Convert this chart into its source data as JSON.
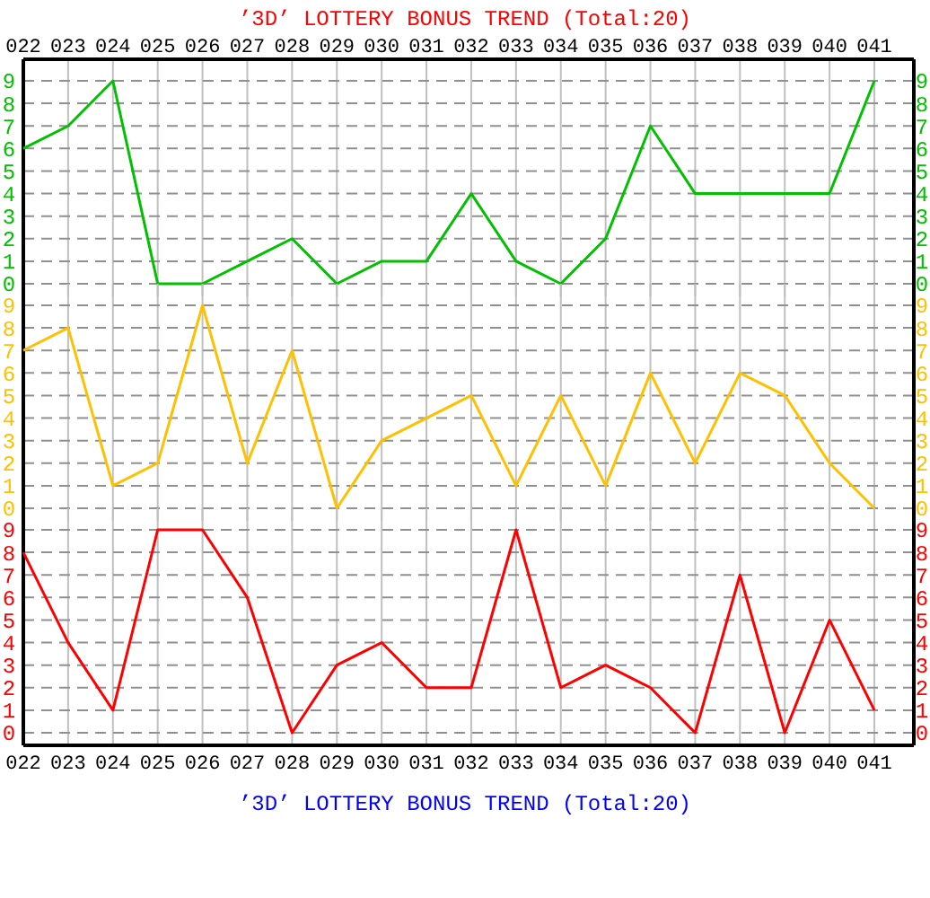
{
  "chart_data": [
    {
      "type": "line",
      "title": "’3D’ LOTTERY BONUS TREND (Total:20)",
      "categories": [
        "022",
        "023",
        "024",
        "025",
        "026",
        "027",
        "028",
        "029",
        "030",
        "031",
        "032",
        "033",
        "034",
        "035",
        "036",
        "037",
        "038",
        "039",
        "040",
        "041"
      ],
      "series": [
        {
          "color": "#00c000",
          "values": [
            6,
            7,
            9,
            0,
            0,
            1,
            2,
            0,
            1,
            1,
            4,
            1,
            0,
            2,
            7,
            4,
            4,
            4,
            4,
            9
          ]
        }
      ],
      "ylim": [
        0,
        9
      ],
      "yticks": [
        0,
        1,
        2,
        3,
        4,
        5,
        6,
        7,
        8,
        9
      ],
      "y2lim": [
        0,
        9
      ],
      "y2ticks": [
        0,
        1,
        2,
        3,
        4,
        5,
        6,
        7,
        8,
        9
      ],
      "grid": true,
      "line_style": "solid"
    },
    {
      "type": "line",
      "categories": [
        "022",
        "023",
        "024",
        "025",
        "026",
        "027",
        "028",
        "029",
        "030",
        "031",
        "032",
        "033",
        "034",
        "035",
        "036",
        "037",
        "038",
        "039",
        "040",
        "041"
      ],
      "series": [
        {
          "color": "#ffc000",
          "values": [
            7,
            8,
            1,
            2,
            9,
            2,
            7,
            0,
            3,
            4,
            5,
            1,
            5,
            1,
            6,
            2,
            6,
            5,
            2,
            0
          ]
        }
      ],
      "ylim": [
        0,
        9
      ],
      "yticks": [
        0,
        1,
        2,
        3,
        4,
        5,
        6,
        7,
        8,
        9
      ],
      "y2lim": [
        0,
        9
      ],
      "y2ticks": [
        0,
        1,
        2,
        3,
        4,
        5,
        6,
        7,
        8,
        9
      ],
      "grid": true,
      "line_style": "solid",
      "tick_labels": "y"
    },
    {
      "type": "line",
      "categories": [
        "022",
        "023",
        "024",
        "025",
        "026",
        "027",
        "028",
        "029",
        "030",
        "031",
        "032",
        "033",
        "034",
        "035",
        "036",
        "037",
        "038",
        "039",
        "040",
        "041"
      ],
      "series": [
        {
          "color": "#ff0000",
          "values": [
            8,
            4,
            1,
            9,
            9,
            6,
            0,
            3,
            4,
            2,
            2,
            9,
            2,
            3,
            2,
            0,
            7,
            0,
            5,
            1
          ]
        }
      ],
      "ylim": [
        0,
        9
      ],
      "yticks": [
        0,
        1,
        2,
        3,
        4,
        5,
        6,
        7,
        8,
        9
      ],
      "y2lim": [
        0,
        9
      ],
      "y2ticks": [
        0,
        1,
        2,
        3,
        4,
        5,
        6,
        7,
        8,
        9
      ],
      "grid": true,
      "line_style": "solid",
      "annotations": [
        "’3D’ LOTTERY BONUS TREND (Total:20)"
      ]
    }
  ]
}
